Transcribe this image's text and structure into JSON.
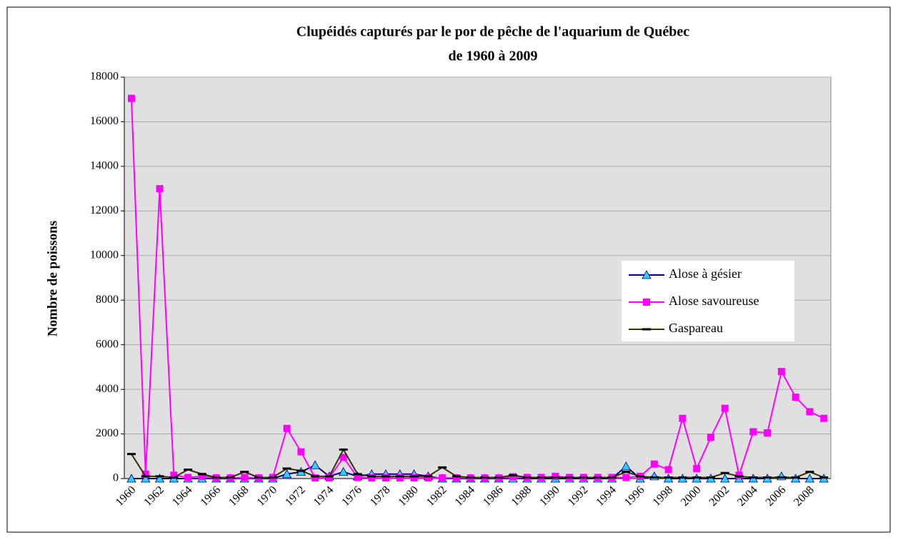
{
  "chart_data": {
    "type": "line",
    "title": "Clupéidés  capturés par le por de pêche de l'aquarium de Québec",
    "subtitle": "de 1960 à 2009",
    "y_label": "Nombre de poissons",
    "categories": [
      "1960",
      null,
      "1962",
      null,
      "1964",
      null,
      "1966",
      null,
      "1968",
      null,
      "1970",
      null,
      "1972",
      null,
      "1974",
      null,
      "1976",
      null,
      "1978",
      null,
      "1980",
      null,
      "1982",
      null,
      "1984",
      null,
      "1986",
      null,
      "1988",
      null,
      "1990",
      null,
      "1992",
      null,
      "1994",
      null,
      "1996",
      null,
      "1998",
      null,
      "2000",
      null,
      "2002",
      null,
      "2004",
      null,
      "2006",
      null,
      "2008",
      null
    ],
    "series": [
      {
        "name": "Alose à gésier",
        "color": "#000080",
        "marker": "triangle",
        "marker_color": "#33ccff",
        "values": [
          0,
          0,
          0,
          0,
          0,
          0,
          0,
          0,
          0,
          0,
          0,
          200,
          300,
          600,
          100,
          300,
          100,
          200,
          200,
          200,
          200,
          100,
          0,
          0,
          0,
          0,
          0,
          0,
          0,
          0,
          0,
          0,
          0,
          0,
          0,
          550,
          0,
          100,
          0,
          0,
          0,
          0,
          0,
          0,
          0,
          0,
          100,
          0,
          0,
          0
        ]
      },
      {
        "name": "Alose savoureuse",
        "color": "#ff00ff",
        "marker": "square",
        "marker_color": "#ff00ff",
        "values": [
          17050,
          200,
          13000,
          150,
          50,
          100,
          30,
          30,
          50,
          30,
          50,
          2250,
          1200,
          30,
          30,
          950,
          50,
          30,
          30,
          30,
          30,
          30,
          30,
          30,
          30,
          30,
          30,
          80,
          50,
          50,
          100,
          50,
          50,
          50,
          50,
          50,
          100,
          650,
          400,
          2700,
          450,
          1850,
          3150,
          150,
          2100,
          2050,
          4800,
          3650,
          3000,
          2700
        ]
      },
      {
        "name": "Gaspareau",
        "color": "#333300",
        "marker": "dash",
        "marker_color": "#000000",
        "values": [
          1100,
          100,
          100,
          50,
          400,
          200,
          50,
          50,
          300,
          50,
          50,
          450,
          350,
          100,
          100,
          1300,
          200,
          100,
          100,
          100,
          100,
          100,
          500,
          100,
          50,
          50,
          50,
          150,
          50,
          50,
          50,
          50,
          50,
          50,
          50,
          300,
          100,
          50,
          50,
          50,
          50,
          50,
          250,
          100,
          50,
          50,
          50,
          50,
          300,
          50
        ]
      }
    ],
    "ylim": [
      0,
      18000
    ],
    "yticks": [
      0,
      2000,
      4000,
      6000,
      8000,
      10000,
      12000,
      14000,
      16000,
      18000
    ],
    "grid": true,
    "legend": "right"
  }
}
